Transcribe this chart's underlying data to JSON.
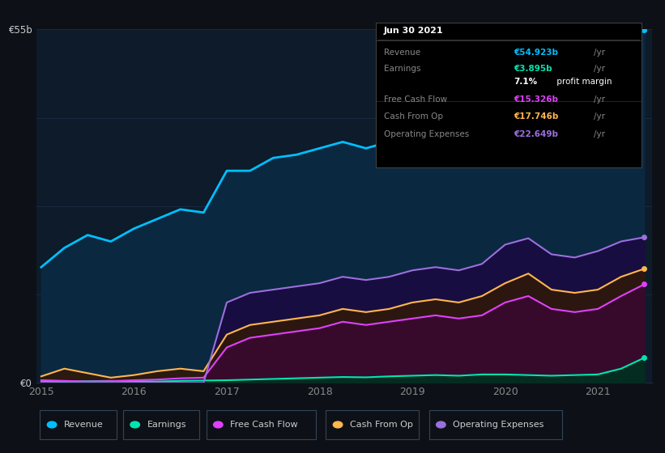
{
  "bg_color": "#0d1117",
  "plot_bg_color": "#0d1b2a",
  "grid_color": "#1a2e45",
  "x": [
    2015.0,
    2015.25,
    2015.5,
    2015.75,
    2016.0,
    2016.25,
    2016.5,
    2016.75,
    2017.0,
    2017.25,
    2017.5,
    2017.75,
    2018.0,
    2018.25,
    2018.5,
    2018.75,
    2019.0,
    2019.25,
    2019.5,
    2019.75,
    2020.0,
    2020.25,
    2020.5,
    2020.75,
    2021.0,
    2021.25,
    2021.5
  ],
  "revenue": [
    18.0,
    21.0,
    23.0,
    22.0,
    24.0,
    25.5,
    27.0,
    26.5,
    33.0,
    33.0,
    35.0,
    35.5,
    36.5,
    37.5,
    36.5,
    37.5,
    39.0,
    40.0,
    39.5,
    41.0,
    48.0,
    50.0,
    46.0,
    45.0,
    46.0,
    52.0,
    54.923
  ],
  "earnings": [
    0.3,
    0.2,
    0.25,
    0.3,
    0.25,
    0.2,
    0.3,
    0.35,
    0.4,
    0.5,
    0.6,
    0.7,
    0.8,
    0.9,
    0.85,
    1.0,
    1.1,
    1.2,
    1.1,
    1.3,
    1.3,
    1.2,
    1.1,
    1.2,
    1.3,
    2.2,
    3.895
  ],
  "free_cash_flow": [
    0.4,
    0.3,
    0.2,
    0.25,
    0.4,
    0.5,
    0.7,
    0.8,
    5.5,
    7.0,
    7.5,
    8.0,
    8.5,
    9.5,
    9.0,
    9.5,
    10.0,
    10.5,
    10.0,
    10.5,
    12.5,
    13.5,
    11.5,
    11.0,
    11.5,
    13.5,
    15.326
  ],
  "cash_from_op": [
    1.0,
    2.2,
    1.5,
    0.8,
    1.2,
    1.8,
    2.2,
    1.8,
    7.5,
    9.0,
    9.5,
    10.0,
    10.5,
    11.5,
    11.0,
    11.5,
    12.5,
    13.0,
    12.5,
    13.5,
    15.5,
    17.0,
    14.5,
    14.0,
    14.5,
    16.5,
    17.746
  ],
  "operating_expenses": [
    0.0,
    0.0,
    0.0,
    0.0,
    0.0,
    0.0,
    0.0,
    0.0,
    12.5,
    14.0,
    14.5,
    15.0,
    15.5,
    16.5,
    16.0,
    16.5,
    17.5,
    18.0,
    17.5,
    18.5,
    21.5,
    22.5,
    20.0,
    19.5,
    20.5,
    22.0,
    22.649
  ],
  "ylim": [
    0,
    55
  ],
  "xlabel_ticks": [
    2015,
    2016,
    2017,
    2018,
    2019,
    2020,
    2021
  ],
  "revenue_color": "#00bfff",
  "earnings_color": "#00e5b0",
  "fcf_color": "#e040fb",
  "cfop_color": "#ffb74d",
  "opex_color": "#9c6fde",
  "legend": [
    {
      "label": "Revenue",
      "color": "#00bfff"
    },
    {
      "label": "Earnings",
      "color": "#00e5b0"
    },
    {
      "label": "Free Cash Flow",
      "color": "#e040fb"
    },
    {
      "label": "Cash From Op",
      "color": "#ffb74d"
    },
    {
      "label": "Operating Expenses",
      "color": "#9c6fde"
    }
  ],
  "tooltip_header": "Jun 30 2021",
  "tooltip_rows": [
    {
      "label": "Revenue",
      "value": "€54.923b",
      "suffix": "/yr",
      "color": "#00bfff"
    },
    {
      "label": "Earnings",
      "value": "€3.895b",
      "suffix": "/yr",
      "color": "#00e5b0"
    },
    {
      "label": "margin_bold",
      "value": "7.1%",
      "suffix": " profit margin",
      "color": "#ffffff"
    },
    {
      "label": "Free Cash Flow",
      "value": "€15.326b",
      "suffix": "/yr",
      "color": "#e040fb"
    },
    {
      "label": "Cash From Op",
      "value": "€17.746b",
      "suffix": "/yr",
      "color": "#ffb74d"
    },
    {
      "label": "Operating Expenses",
      "value": "€22.649b",
      "suffix": "/yr",
      "color": "#9c6fde"
    }
  ]
}
